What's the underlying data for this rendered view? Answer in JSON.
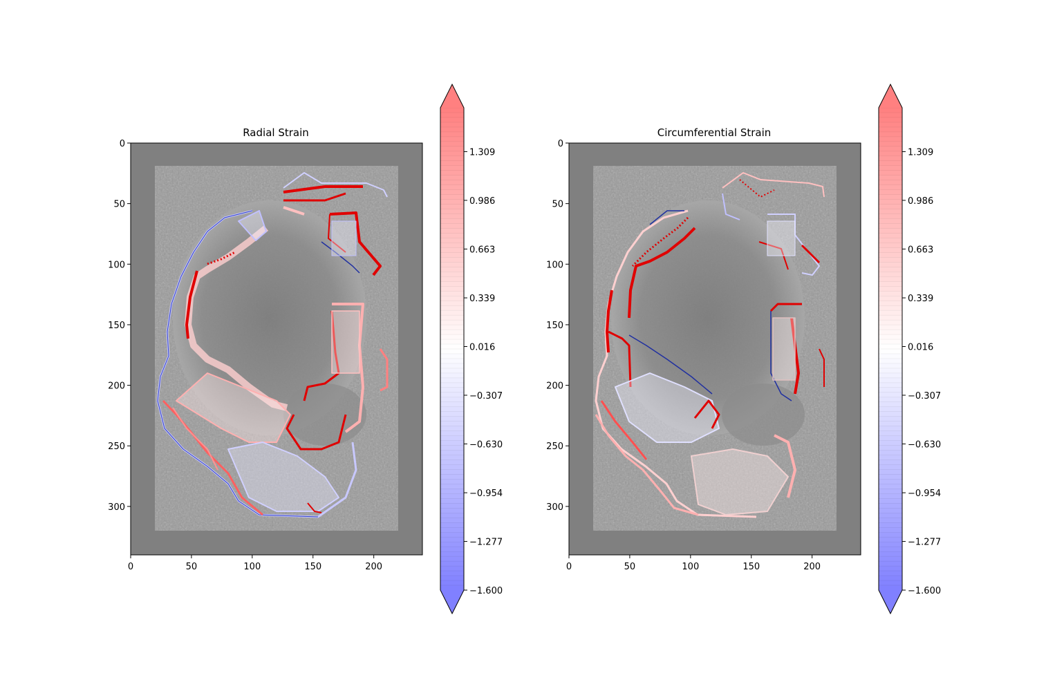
{
  "chart_data": [
    {
      "type": "heatmap",
      "title": "Radial Strain",
      "xlim": [
        0,
        240
      ],
      "ylim": [
        340,
        0
      ],
      "x_ticks": [
        0,
        50,
        100,
        150,
        200
      ],
      "y_ticks": [
        0,
        50,
        100,
        150,
        200,
        250,
        300
      ],
      "colorbar": {
        "ticks": [
          "1.309",
          "0.986",
          "0.663",
          "0.339",
          "0.016",
          "−0.307",
          "−0.630",
          "−0.954",
          "−1.277",
          "−1.600"
        ],
        "range": [
          -1.6,
          1.6
        ],
        "extend": "both",
        "cmap": "bwr",
        "colors": {
          "low": "#8080ff",
          "mid": "#ffffff",
          "high": "#ff8080"
        }
      }
    },
    {
      "type": "heatmap",
      "title": "Circumferential Strain",
      "xlim": [
        0,
        240
      ],
      "ylim": [
        340,
        0
      ],
      "x_ticks": [
        0,
        50,
        100,
        150,
        200
      ],
      "y_ticks": [
        0,
        50,
        100,
        150,
        200,
        250,
        300
      ],
      "colorbar": {
        "ticks": [
          "1.309",
          "0.986",
          "0.663",
          "0.339",
          "0.016",
          "−0.307",
          "−0.630",
          "−0.954",
          "−1.277",
          "−1.600"
        ],
        "range": [
          -1.6,
          1.6
        ],
        "extend": "both",
        "cmap": "bwr",
        "colors": {
          "low": "#8080ff",
          "mid": "#ffffff",
          "high": "#ff8080"
        }
      }
    }
  ]
}
